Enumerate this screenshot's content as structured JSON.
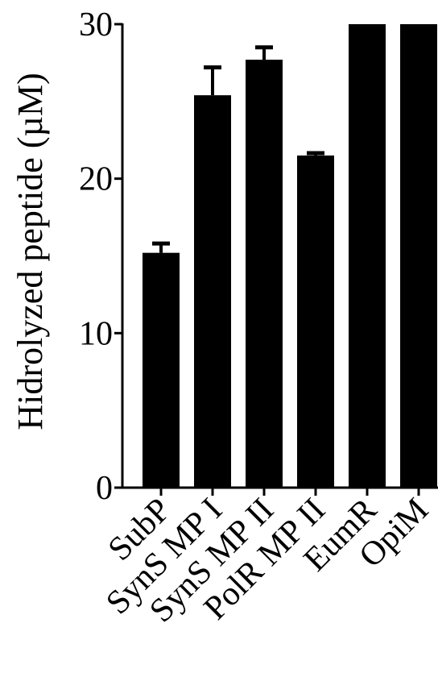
{
  "chart_data": {
    "type": "bar",
    "title": "",
    "xlabel": "",
    "ylabel": "Hidrolyzed peptide (µM)",
    "ylim": [
      0,
      30
    ],
    "yticks": [
      "0",
      "10",
      "20",
      "30"
    ],
    "grid": false,
    "legend": "none",
    "bar_color": "#000000",
    "categories": [
      "SubP",
      "SynS MP I",
      "SynS MP II",
      "PolR MP II",
      "EumR",
      "OpiM"
    ],
    "values": [
      15.2,
      25.4,
      27.7,
      21.5,
      30,
      30
    ],
    "error_upper": [
      0.6,
      1.8,
      0.8,
      0.15,
      0,
      0
    ]
  }
}
